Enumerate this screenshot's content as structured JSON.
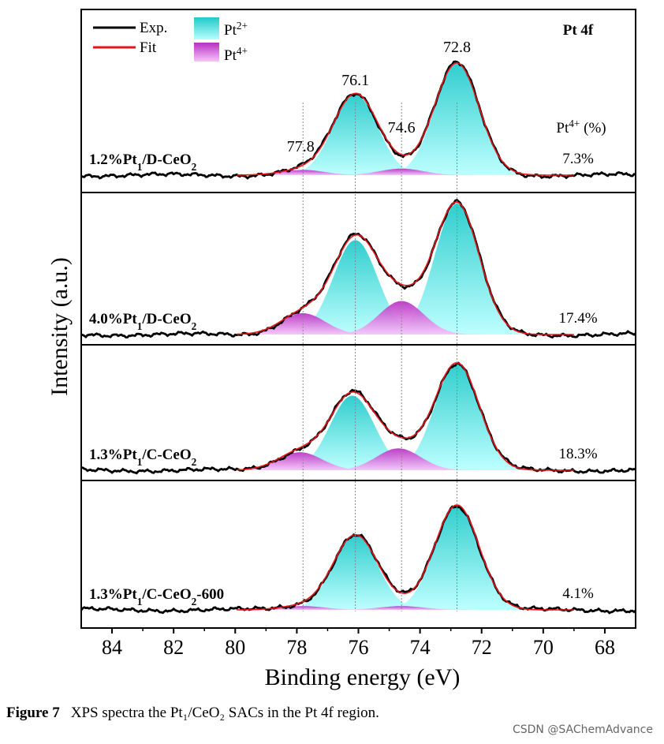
{
  "chart_data": {
    "type": "line",
    "title": "Pt 4f",
    "xlabel": "Binding energy (eV)",
    "ylabel": "Intensity (a.u.)",
    "xlim": [
      85,
      67
    ],
    "x_ticks": [
      "84",
      "82",
      "80",
      "78",
      "76",
      "74",
      "72",
      "70",
      "68"
    ],
    "x_tick_values": [
      84,
      82,
      80,
      78,
      76,
      74,
      72,
      70,
      68
    ],
    "legend": {
      "exp": "Exp.",
      "fit": "Fit",
      "pt2_base": "Pt",
      "pt2_sup": "2+",
      "pt4_base": "Pt",
      "pt4_sup": "4+"
    },
    "peak_labels": [
      "77.8",
      "76.1",
      "74.6",
      "72.8"
    ],
    "peak_positions": [
      77.8,
      76.1,
      74.6,
      72.8
    ],
    "ratio_header": {
      "base": "Pt",
      "sup": "4+",
      "rest": " (%)"
    },
    "panels": [
      {
        "name": "1.2%Pt1/D-CeO2",
        "label": {
          "a": "1.2%Pt",
          "sub1": "1",
          "b": "/D-CeO",
          "sub2": "2",
          "c": ""
        },
        "pt4_percent": "7.3%",
        "pt2_peaks": [
          {
            "center": 76.1,
            "height": 0.62
          },
          {
            "center": 72.8,
            "height": 0.86
          }
        ],
        "pt4_peaks": [
          {
            "center": 77.8,
            "height": 0.04
          },
          {
            "center": 74.6,
            "height": 0.05
          }
        ]
      },
      {
        "name": "4.0%Pt1/D-CeO2",
        "label": {
          "a": "4.0%Pt",
          "sub1": "1",
          "b": "/D-CeO",
          "sub2": "2",
          "c": ""
        },
        "pt4_percent": "17.4%",
        "pt2_peaks": [
          {
            "center": 76.1,
            "height": 0.62
          },
          {
            "center": 72.8,
            "height": 0.86
          }
        ],
        "pt4_peaks": [
          {
            "center": 77.8,
            "height": 0.14
          },
          {
            "center": 74.6,
            "height": 0.22
          }
        ]
      },
      {
        "name": "1.3%Pt1/C-CeO2",
        "label": {
          "a": "1.3%Pt",
          "sub1": "1",
          "b": "/C-CeO",
          "sub2": "2",
          "c": ""
        },
        "pt4_percent": "18.3%",
        "pt2_peaks": [
          {
            "center": 76.2,
            "height": 0.58
          },
          {
            "center": 72.8,
            "height": 0.83
          }
        ],
        "pt4_peaks": [
          {
            "center": 77.9,
            "height": 0.14
          },
          {
            "center": 74.7,
            "height": 0.17
          }
        ]
      },
      {
        "name": "1.3%Pt1/C-CeO2-600",
        "label": {
          "a": "1.3%Pt",
          "sub1": "1",
          "b": "/C-CeO",
          "sub2": "2",
          "c": "-600"
        },
        "pt4_percent": "4.1%",
        "pt2_peaks": [
          {
            "center": 76.1,
            "height": 0.59
          },
          {
            "center": 72.8,
            "height": 0.83
          }
        ],
        "pt4_peaks": [
          {
            "center": 77.8,
            "height": 0.03
          },
          {
            "center": 74.6,
            "height": 0.03
          }
        ]
      }
    ]
  },
  "caption": {
    "label": "Figure 7",
    "text": "XPS spectra the Pt₁/CeO₂ SACs in the Pt 4f region."
  },
  "watermark": "CSDN @SAChemAdvance",
  "colors": {
    "exp": "#000000",
    "fit": "#e8141c",
    "pt2_top": "#1fc9c9",
    "pt2_bottom": "#b8ffff",
    "pt4_top": "#b82fc4",
    "pt4_bottom": "#f7c4fa",
    "axis": "#000000",
    "guide": "#888888"
  }
}
